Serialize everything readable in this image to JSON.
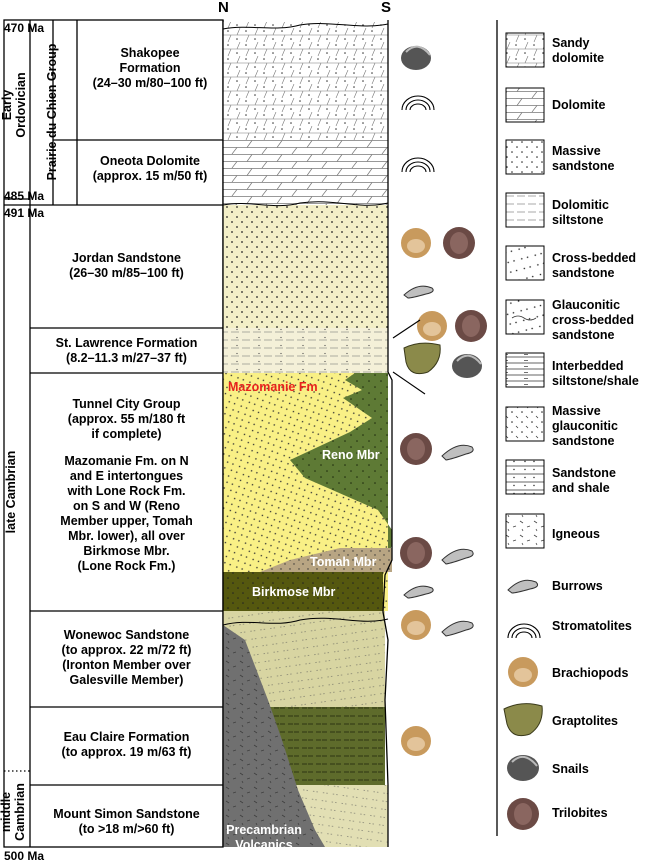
{
  "compass": {
    "north": "N",
    "south": "S"
  },
  "ages": {
    "top": "470 Ma",
    "ordovician_base": "485 Ma",
    "cambrian_top": "491 Ma",
    "bottom": "500 Ma"
  },
  "epochs": {
    "early_ordovician": [
      "Early",
      "Ordovician"
    ],
    "late_cambrian": "late Cambrian",
    "middle_cambrian": [
      "middle",
      "Cambrian"
    ]
  },
  "group": "Prairie du Chien Group",
  "units": {
    "shakopee": [
      "Shakopee",
      "Formation",
      "(24–30 m/80–100 ft)"
    ],
    "oneota": [
      "Oneota Dolomite",
      "(approx. 15 m/50 ft)"
    ],
    "jordan": [
      "Jordan Sandstone",
      "(26–30 m/85–100 ft)"
    ],
    "st_lawrence": [
      "St. Lawrence Formation",
      "(8.2–11.3 m/27–37 ft)"
    ],
    "tunnel_city": [
      "Tunnel City Group",
      "(approx. 55 m/180 ft",
      "if complete)",
      "",
      "Mazomanie Fm. on N",
      "and E intertongues",
      "with Lone Rock Fm.",
      "on S and W (Reno",
      "Member upper, Tomah",
      "Mbr. lower), all over",
      "Birkmose Mbr.",
      "(Lone Rock Fm.)"
    ],
    "wonewoc": [
      "Wonewoc Sandstone",
      "(to approx. 22 m/72 ft)",
      "(Ironton Member over",
      "Galesville Member)"
    ],
    "eau_claire": [
      "Eau Claire Formation",
      "(to approx. 19 m/63 ft)"
    ],
    "mount_simon": [
      "Mount Simon Sandstone",
      "(to >18 m/>60 ft)"
    ]
  },
  "column_labels": {
    "mazomanie": "Mazomanie Fm",
    "reno": "Reno Mbr",
    "tomah": "Tomah Mbr",
    "birkmose": "Birkmose Mbr",
    "precambrian": [
      "Precambrian",
      "Volcanics"
    ]
  },
  "legend": [
    {
      "pattern": "sandy-dolomite",
      "label": [
        "Sandy",
        "dolomite"
      ]
    },
    {
      "pattern": "dolomite",
      "label": [
        "Dolomite"
      ]
    },
    {
      "pattern": "massive-sandstone",
      "label": [
        "Massive",
        "sandstone"
      ]
    },
    {
      "pattern": "dolomitic-siltstone",
      "label": [
        "Dolomitic",
        "siltstone"
      ]
    },
    {
      "pattern": "cross-bedded-sandstone",
      "label": [
        "Cross-bedded",
        "sandstone"
      ]
    },
    {
      "pattern": "glauconitic-cross-bedded",
      "label": [
        "Glauconitic",
        "cross-bedded",
        "sandstone"
      ]
    },
    {
      "pattern": "interbedded-siltstone-shale",
      "label": [
        "Interbedded",
        "siltstone/shale"
      ]
    },
    {
      "pattern": "massive-glauconitic-sandstone",
      "label": [
        "Massive",
        "glauconitic",
        "sandstone"
      ]
    },
    {
      "pattern": "sandstone-and-shale",
      "label": [
        "Sandstone",
        "and shale"
      ]
    },
    {
      "pattern": "igneous",
      "label": [
        "Igneous"
      ]
    },
    {
      "pattern": "burrows",
      "label": [
        "Burrows"
      ]
    },
    {
      "pattern": "stromatolites",
      "label": [
        "Stromatolites"
      ]
    },
    {
      "pattern": "brachiopods",
      "label": [
        "Brachiopods"
      ]
    },
    {
      "pattern": "graptolites",
      "label": [
        "Graptolites"
      ]
    },
    {
      "pattern": "snails",
      "label": [
        "Snails"
      ]
    },
    {
      "pattern": "trilobites",
      "label": [
        "Trilobites"
      ]
    }
  ],
  "colors": {
    "sand": "#f3efc7",
    "cream": "#f4f0d8",
    "yellow": "#f9f086",
    "olive": "#5e7a35",
    "olive_dark": "#55580f",
    "tan": "#b8a583",
    "khaki": "#d8d5a2",
    "eau_claire": "#5e6b2b",
    "volcanic": "#707070",
    "title_red": "#e8231e"
  }
}
